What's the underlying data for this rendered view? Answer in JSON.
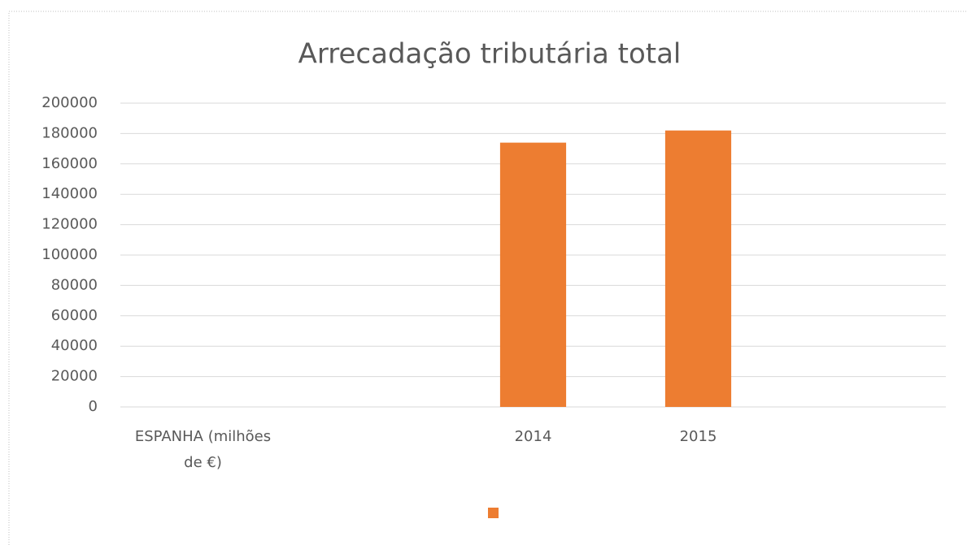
{
  "chart_data": {
    "type": "bar",
    "title": "Arrecadação tributária total",
    "categories": [
      "ESPANHA (milhões de €)",
      null,
      "2014",
      "2015",
      null
    ],
    "values": [
      null,
      null,
      174000,
      182000,
      null
    ],
    "color": "#ed7d31",
    "ylim": [
      0,
      200000
    ],
    "yticks": [
      0,
      20000,
      40000,
      60000,
      80000,
      100000,
      120000,
      140000,
      160000,
      180000,
      200000
    ],
    "grid": true,
    "legend": "bottom"
  }
}
